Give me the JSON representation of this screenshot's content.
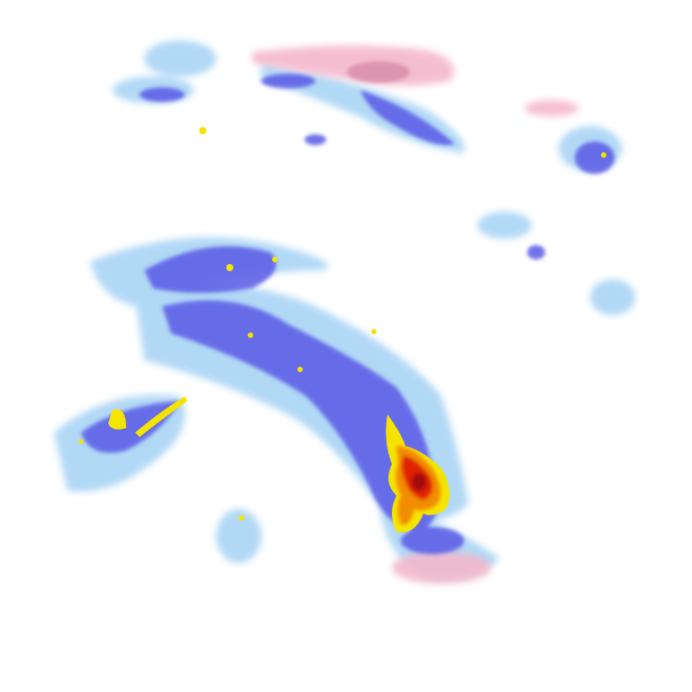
{
  "map": {
    "type": "precipitation-radar-composite",
    "background": "#ffffff",
    "palette": {
      "light": "#a9d4f5",
      "moderate": "#5a5ae6",
      "heavy": "#3030d8",
      "intense": "#f5e400",
      "very_intense": "#f28c00",
      "extreme": "#e02000",
      "core": "#a01010",
      "mixed_snow": "#f4b8cc",
      "mixed_snow_dark": "#d88aa8"
    },
    "features": [
      {
        "name": "northern-band",
        "intensity": "light-moderate",
        "mixed": true
      },
      {
        "name": "northeast-cells",
        "intensity": "moderate"
      },
      {
        "name": "central-spiral-band",
        "intensity": "moderate-heavy"
      },
      {
        "name": "western-line",
        "intensity": "intense"
      },
      {
        "name": "southeast-storm-core",
        "intensity": "extreme"
      }
    ]
  }
}
